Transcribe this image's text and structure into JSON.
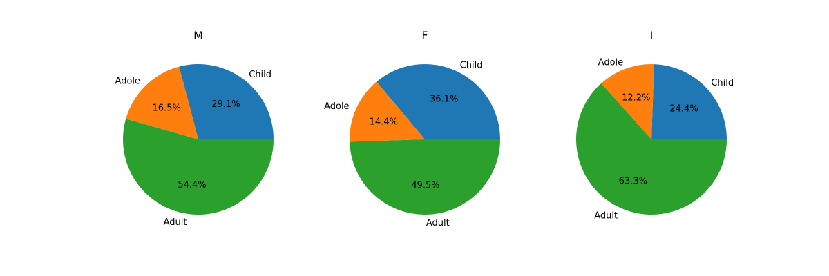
{
  "chart_data": [
    {
      "type": "pie",
      "title": "M",
      "categories": [
        "Child",
        "Adole",
        "Adult"
      ],
      "values": [
        29.1,
        16.5,
        54.4
      ],
      "colors": [
        "#1f77b4",
        "#ff7f0e",
        "#2ca02c"
      ],
      "percent_labels": [
        "29.1%",
        "16.5%",
        "54.4%"
      ],
      "start_angle_deg": 0,
      "direction": "counterclockwise"
    },
    {
      "type": "pie",
      "title": "F",
      "categories": [
        "Child",
        "Adole",
        "Adult"
      ],
      "values": [
        36.1,
        14.4,
        49.5
      ],
      "colors": [
        "#1f77b4",
        "#ff7f0e",
        "#2ca02c"
      ],
      "percent_labels": [
        "36.1%",
        "14.4%",
        "49.5%"
      ],
      "start_angle_deg": 0,
      "direction": "counterclockwise"
    },
    {
      "type": "pie",
      "title": "I",
      "categories": [
        "Child",
        "Adole",
        "Adult"
      ],
      "values": [
        24.4,
        12.2,
        63.3
      ],
      "colors": [
        "#1f77b4",
        "#ff7f0e",
        "#2ca02c"
      ],
      "percent_labels": [
        "24.4%",
        "12.2%",
        "63.3%"
      ],
      "start_angle_deg": 0,
      "direction": "counterclockwise"
    }
  ]
}
